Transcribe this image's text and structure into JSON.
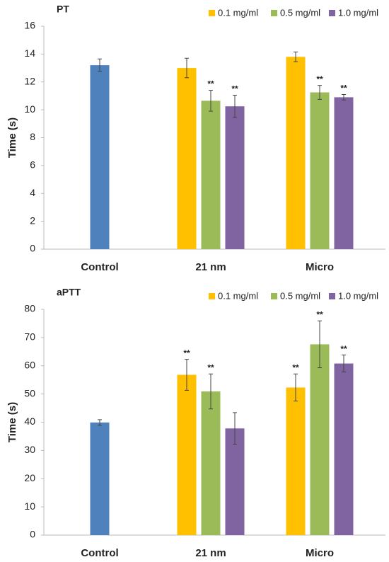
{
  "chart_data": [
    {
      "type": "bar",
      "title": "PT",
      "ylabel": "Time (s)",
      "categories": [
        "Control",
        "21 nm",
        "Micro"
      ],
      "ylim": [
        0,
        16
      ],
      "yticks": [
        0,
        2,
        4,
        6,
        8,
        10,
        12,
        14,
        16
      ],
      "control_bar": {
        "color": "#4f81bd",
        "value": 13.2,
        "error": 0.45
      },
      "series": [
        {
          "name": "0.1 mg/ml",
          "color": "#ffc000",
          "values": [
            null,
            13.0,
            13.8
          ],
          "errors": [
            null,
            0.7,
            0.35
          ],
          "annotations": [
            null,
            null,
            null
          ]
        },
        {
          "name": "0.5 mg/ml",
          "color": "#9bbb59",
          "values": [
            null,
            10.65,
            11.25
          ],
          "errors": [
            null,
            0.75,
            0.5
          ],
          "annotations": [
            null,
            "**",
            "**"
          ]
        },
        {
          "name": "1.0 mg/ml",
          "color": "#8064a2",
          "values": [
            null,
            10.25,
            10.9
          ],
          "errors": [
            null,
            0.8,
            0.2
          ],
          "annotations": [
            null,
            "**",
            "**"
          ]
        }
      ]
    },
    {
      "type": "bar",
      "title": "aPTT",
      "ylabel": "Time (s)",
      "categories": [
        "Control",
        "21 nm",
        "Micro"
      ],
      "ylim": [
        0,
        80
      ],
      "yticks": [
        0,
        10,
        20,
        30,
        40,
        50,
        60,
        70,
        80
      ],
      "control_bar": {
        "color": "#4f81bd",
        "value": 39.9,
        "error": 1.0
      },
      "series": [
        {
          "name": "0.1 mg/ml",
          "color": "#ffc000",
          "values": [
            null,
            56.8,
            52.3
          ],
          "errors": [
            null,
            5.5,
            4.8
          ],
          "annotations": [
            null,
            "**",
            "**"
          ]
        },
        {
          "name": "0.5 mg/ml",
          "color": "#9bbb59",
          "values": [
            null,
            50.9,
            67.6
          ],
          "errors": [
            null,
            6.2,
            8.3
          ],
          "annotations": [
            null,
            "**",
            "**"
          ]
        },
        {
          "name": "1.0 mg/ml",
          "color": "#8064a2",
          "values": [
            null,
            37.8,
            60.8
          ],
          "errors": [
            null,
            5.6,
            3.0
          ],
          "annotations": [
            null,
            null,
            "**"
          ]
        }
      ]
    }
  ]
}
